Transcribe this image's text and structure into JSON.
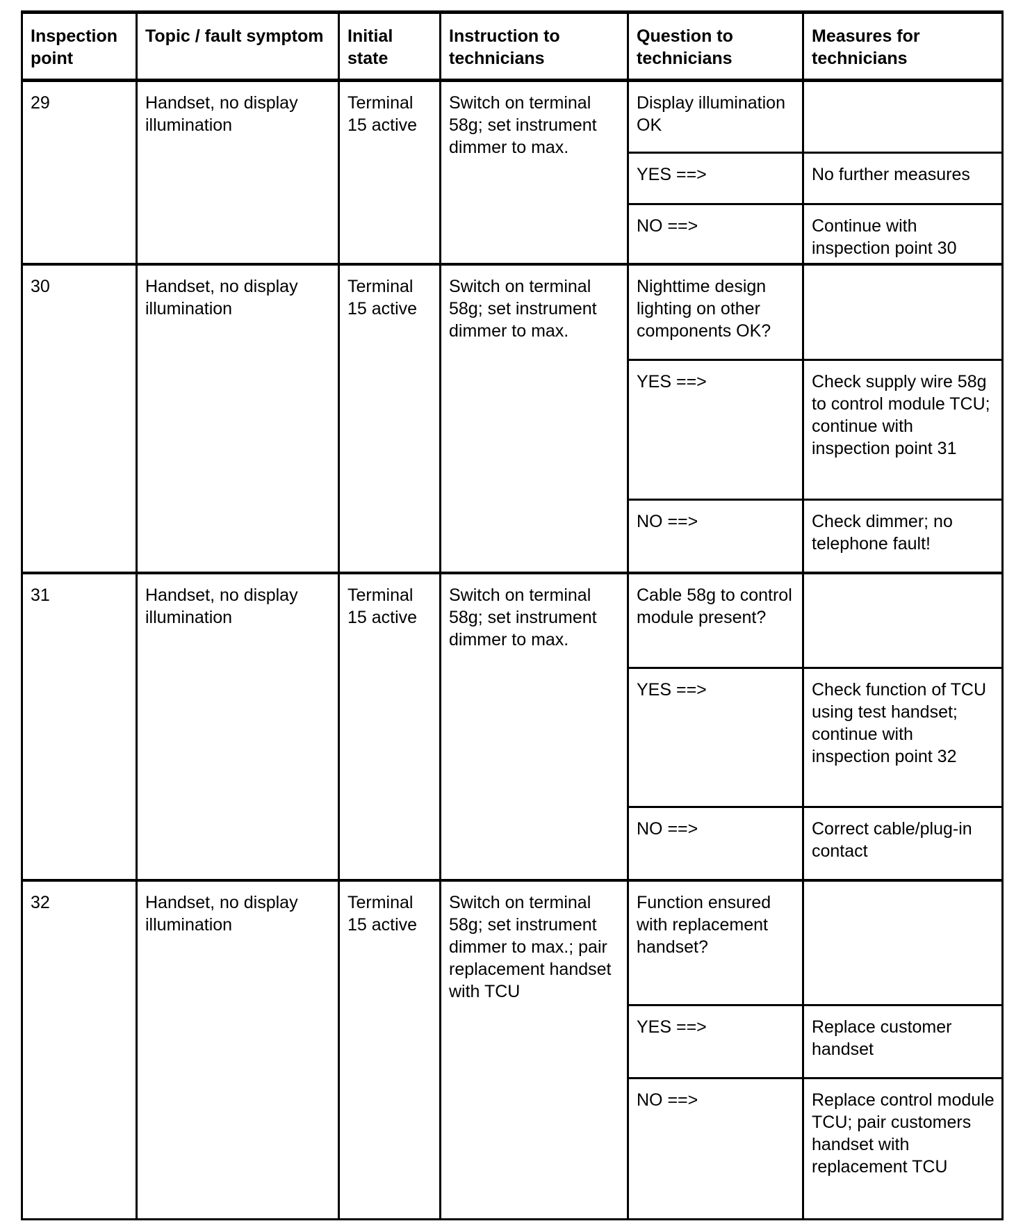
{
  "headers": [
    "Inspection point",
    "Topic / fault symptom",
    "Initial state",
    "Instruction to technicians",
    "Question to technicians",
    "Measures for technicians"
  ],
  "rows": [
    {
      "point": "29",
      "topic": "Handset, no display illumination",
      "state": "Terminal 15 active",
      "instruction": "Switch on terminal 58g; set instrument dimmer to max.",
      "question": "Display illumination OK",
      "yes_label": "YES ==>",
      "yes_measure": "No further measures",
      "no_label": "NO ==>",
      "no_measure": "Continue with inspection point 30"
    },
    {
      "point": "30",
      "topic": "Handset, no display illumination",
      "state": "Terminal 15 active",
      "instruction": "Switch on terminal 58g; set instrument dimmer to max.",
      "question": "Nighttime design lighting on other components OK?",
      "yes_label": "YES ==>",
      "yes_measure": "Check supply wire 58g to control module TCU; continue with inspection point 31",
      "no_label": "NO ==>",
      "no_measure": "Check dimmer; no telephone fault!"
    },
    {
      "point": "31",
      "topic": "Handset, no display illumination",
      "state": "Terminal 15 active",
      "instruction": "Switch on terminal 58g; set instrument dimmer to max.",
      "question": "Cable 58g to control module present?",
      "yes_label": "YES ==>",
      "yes_measure": "Check function of TCU using test handset; continue with inspection point 32",
      "no_label": "NO ==>",
      "no_measure": "Correct cable/plug-in contact"
    },
    {
      "point": "32",
      "topic": "Handset, no display illumination",
      "state": "Terminal 15 active",
      "instruction": "Switch on terminal 58g; set instrument dimmer to max.; pair replacement handset with TCU",
      "question": "Function ensured with replacement handset?",
      "yes_label": "YES ==>",
      "yes_measure": "Replace customer handset",
      "no_label": "NO ==>",
      "no_measure": "Replace control module TCU; pair customers handset with replacement TCU"
    }
  ]
}
